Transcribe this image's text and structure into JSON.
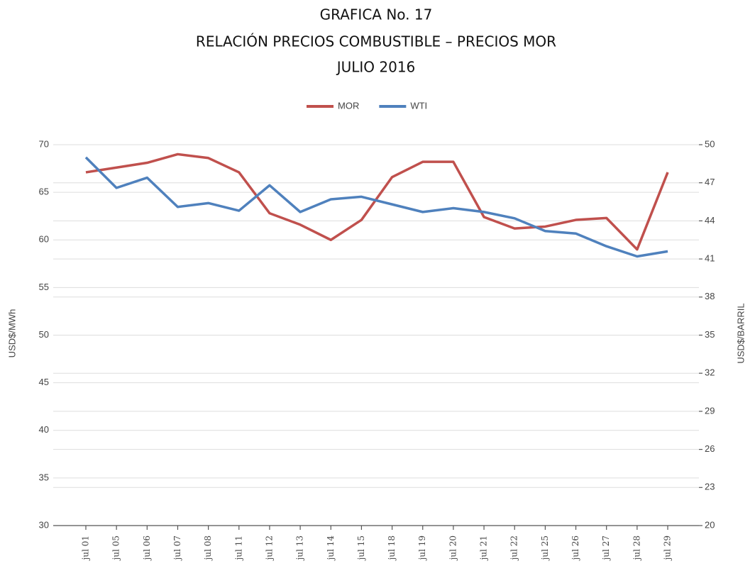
{
  "chart_data": {
    "type": "line",
    "title": [
      "GRAFICA No. 17",
      "RELACIÓN PRECIOS COMBUSTIBLE – PRECIOS MOR",
      "JULIO 2016"
    ],
    "y_label": "USD$/MWh",
    "y2_label": "USD$/BARRIL",
    "categories": [
      "jul 01",
      "jul 05",
      "jul 06",
      "jul 07",
      "jul 08",
      "jul 11",
      "jul 12",
      "jul 13",
      "jul 14",
      "jul 15",
      "jul 18",
      "jul 19",
      "jul 20",
      "jul 21",
      "jul 22",
      "jul 25",
      "jul 26",
      "jul 27",
      "jul 28",
      "jul 29"
    ],
    "series": [
      {
        "name": "MOR",
        "color": "#c0504d",
        "values": [
          67.1,
          67.6,
          68.1,
          69.0,
          68.6,
          67.1,
          62.8,
          61.6,
          60.0,
          62.1,
          66.6,
          68.2,
          68.2,
          62.4,
          61.2,
          61.4,
          62.1,
          62.3,
          59.0,
          67.1
        ]
      },
      {
        "name": "WTI",
        "color": "#4f81bd",
        "axis": "y2",
        "values": [
          49.0,
          46.6,
          47.4,
          45.1,
          45.4,
          44.8,
          46.8,
          44.7,
          45.7,
          45.9,
          45.3,
          44.7,
          45.0,
          44.7,
          44.2,
          43.2,
          43.0,
          42.0,
          41.2,
          41.6
        ]
      }
    ],
    "ylim": [
      30,
      70
    ],
    "yticks": [
      30,
      35,
      40,
      45,
      50,
      55,
      60,
      65,
      70
    ],
    "y2lim": [
      20,
      50
    ],
    "y2ticks": [
      20,
      23,
      26,
      29,
      32,
      35,
      38,
      41,
      44,
      47,
      50
    ],
    "grid": true,
    "legend": "top"
  }
}
